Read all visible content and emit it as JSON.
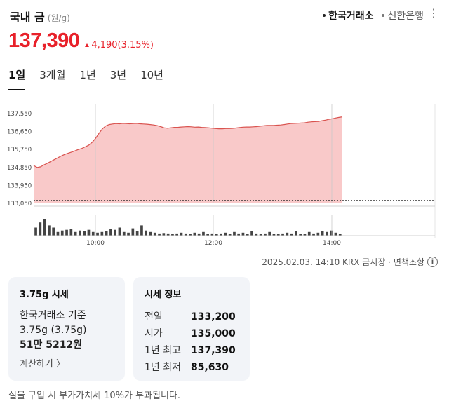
{
  "header": {
    "title": "국내 금",
    "unit": "(원/g)",
    "sources": [
      {
        "label": "한국거래소",
        "active": true
      },
      {
        "label": "신한은행",
        "active": false
      }
    ],
    "more_icon": "vertical-dots-icon"
  },
  "price": {
    "value": "137,390",
    "change": "4,190",
    "change_pct": "(3.15%)",
    "color": "#e8212a"
  },
  "tabs": [
    {
      "label": "1일",
      "active": true
    },
    {
      "label": "3개월",
      "active": false
    },
    {
      "label": "1년",
      "active": false
    },
    {
      "label": "3년",
      "active": false
    },
    {
      "label": "10년",
      "active": false
    }
  ],
  "chart_data": {
    "type": "area",
    "y_ticks": [
      "137,550",
      "136,650",
      "135,750",
      "134,850",
      "133,950",
      "133,050"
    ],
    "ylim": [
      133050,
      137550
    ],
    "x_ticks": [
      "10:00",
      "12:00",
      "14:00"
    ],
    "baseline": 133200,
    "fill_color": "#f9c9c9",
    "line_color": "#d9534f",
    "series": [
      {
        "values": [
          134950,
          134850,
          134880,
          134980,
          135060,
          135150,
          135240,
          135330,
          135420,
          135500,
          135560,
          135620,
          135680,
          135750,
          135800,
          135880,
          135960,
          136100,
          136300,
          136550,
          136780,
          136930,
          137000,
          137030,
          137050,
          137040,
          137060,
          137050,
          137040,
          137050,
          137060,
          137040,
          137030,
          137020,
          137000,
          136980,
          136950,
          136900,
          136840,
          136820,
          136840,
          136860,
          136860,
          136880,
          136890,
          136900,
          136890,
          136870,
          136880,
          136860,
          136850,
          136840,
          136820,
          136800,
          136790,
          136790,
          136800,
          136800,
          136810,
          136830,
          136850,
          136870,
          136880,
          136880,
          136890,
          136900,
          136920,
          136940,
          136960,
          136960,
          136960,
          136970,
          136980,
          137000,
          137030,
          137050,
          137060,
          137070,
          137080,
          137090,
          137120,
          137140,
          137150,
          137160,
          137190,
          137220,
          137260,
          137290,
          137330,
          137360,
          137390
        ]
      }
    ],
    "volume": [
      22,
      36,
      46,
      28,
      22,
      10,
      14,
      16,
      18,
      10,
      14,
      12,
      16,
      10,
      8,
      10,
      12,
      18,
      16,
      22,
      10,
      8,
      20,
      12,
      28,
      14,
      10,
      8,
      6,
      7,
      6,
      5,
      6,
      8,
      6,
      4,
      8,
      6,
      10,
      5,
      6,
      4,
      6,
      8,
      4,
      10,
      6,
      8,
      5,
      12,
      6,
      4,
      6,
      10,
      5,
      4,
      6,
      8,
      6,
      12,
      5,
      4,
      10,
      6,
      8,
      12,
      10,
      14,
      8,
      4
    ]
  },
  "timestamp": "2025.02.03. 14:10 KRX 금시장 · 면책조항",
  "card1": {
    "title": "3.75g 시세",
    "line1": "한국거래소 기준",
    "line2": "3.75g (3.75g)",
    "line3": "51만 5212원",
    "link": "계산하기 〉"
  },
  "card2": {
    "title": "시세 정보",
    "rows": [
      {
        "k": "전일",
        "v": "133,200"
      },
      {
        "k": "시가",
        "v": "135,000"
      },
      {
        "k": "1년 최고",
        "v": "137,390"
      },
      {
        "k": "1년 최저",
        "v": "85,630"
      }
    ]
  },
  "footnote": "실물 구입 시 부가가치세 10%가 부과됩니다."
}
